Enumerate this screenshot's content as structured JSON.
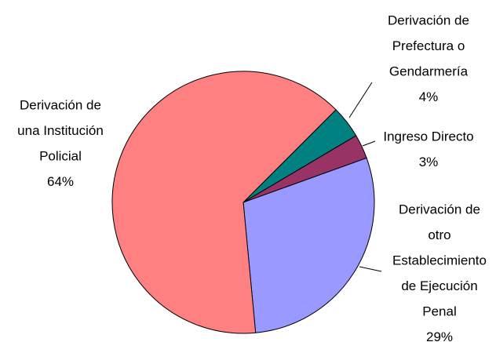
{
  "chart_data": {
    "type": "pie",
    "categories": [
      [
        "Derivación de",
        "Prefectura o",
        "Gendarmería"
      ],
      [
        "Ingreso Directo"
      ],
      [
        "Derivación de",
        "otro",
        "Establecimiento",
        "de Ejecución",
        "Penal"
      ],
      [
        "Derivación de",
        "una Institución",
        "Policial"
      ]
    ],
    "values": [
      4,
      3,
      29,
      64
    ],
    "value_labels": [
      "4%",
      "3%",
      "29%",
      "64%"
    ],
    "colors": [
      "#008080",
      "#993366",
      "#9999ff",
      "#ff8080"
    ]
  }
}
